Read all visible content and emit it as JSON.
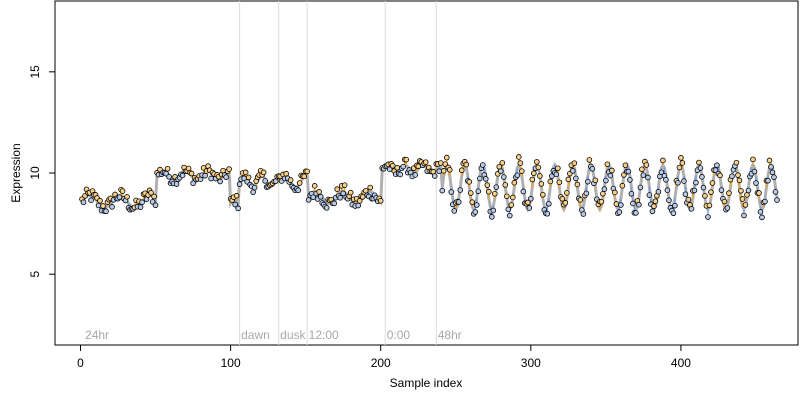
{
  "chart_data": {
    "type": "scatter",
    "xlabel": "Sample index",
    "ylabel": "Expression",
    "xlim": [
      -17,
      478
    ],
    "ylim": [
      1.5,
      18.5
    ],
    "x_ticks": [
      0,
      100,
      200,
      300,
      400
    ],
    "y_ticks": [
      5,
      10,
      15
    ],
    "x_tick_labels": [
      "0",
      "100",
      "200",
      "300",
      "400"
    ],
    "y_tick_labels": [
      "5",
      "10",
      "15"
    ],
    "grid": false,
    "legend": "none",
    "fit_color": "#b0b0b0",
    "positive_residual_color": "#f5a623",
    "negative_residual_color": "#6d9eeb",
    "point_fill_high": "#f8d08a",
    "point_fill_low": "#b8cbe8",
    "section_lines": [
      106,
      132,
      151,
      203,
      237
    ],
    "annotations": [
      {
        "text": "24hr",
        "x": 3
      },
      {
        "text": "dawn",
        "x": 107
      },
      {
        "text": "dusk",
        "x": 133
      },
      {
        "text": "12:00",
        "x": 152
      },
      {
        "text": "0:00",
        "x": 204
      },
      {
        "text": "48hr",
        "x": 238
      }
    ],
    "annotation_y": 2.0,
    "segments": [
      {
        "x0": 1,
        "x1": 50,
        "base": 8.6,
        "amp": 0.3,
        "period": 20,
        "noise": 0.35
      },
      {
        "x0": 51,
        "x1": 99,
        "base": 9.9,
        "amp": 0.2,
        "period": 15,
        "noise": 0.3
      },
      {
        "x0": 100,
        "x1": 105,
        "base": 8.5,
        "amp": 0.2,
        "period": 10,
        "noise": 0.3
      },
      {
        "x0": 106,
        "x1": 131,
        "base": 9.6,
        "amp": 0.25,
        "period": 12,
        "noise": 0.3
      },
      {
        "x0": 132,
        "x1": 151,
        "base": 9.6,
        "amp": 0.3,
        "period": 15,
        "noise": 0.3
      },
      {
        "x0": 152,
        "x1": 200,
        "base": 8.8,
        "amp": 0.3,
        "period": 18,
        "noise": 0.35
      },
      {
        "x0": 201,
        "x1": 240,
        "base": 10.2,
        "amp": 0.2,
        "period": 12,
        "noise": 0.3
      },
      {
        "x0": 241,
        "x1": 464,
        "base": 9.3,
        "amp": 1.1,
        "period": 12,
        "noise": 0.4
      }
    ]
  }
}
